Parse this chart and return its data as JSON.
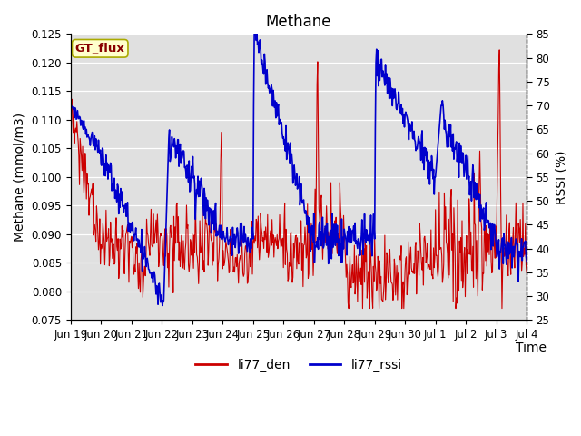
{
  "title": "Methane",
  "ylabel_left": "Methane (mmol/m3)",
  "ylabel_right": "RSSI (%)",
  "xlabel": "Time",
  "ylim_left": [
    0.075,
    0.125
  ],
  "ylim_right": [
    25,
    85
  ],
  "xtick_labels": [
    "Jun 19",
    "Jun 20",
    "Jun 21",
    "Jun 22",
    "Jun 23",
    "Jun 24",
    "Jun 25",
    "Jun 26",
    "Jun 27",
    "Jun 28",
    "Jun 29",
    "Jun 30",
    "Jul 1",
    "Jul 2",
    "Jul 3",
    "Jul 4"
  ],
  "line_red_label": "li77_den",
  "line_blue_label": "li77_rssi",
  "line_red_color": "#cc0000",
  "line_blue_color": "#0000cc",
  "bg_color": "#e0e0e0",
  "legend_box_color": "#ffffcc",
  "legend_box_edge": "#aaaa00",
  "annotation_text": "GT_flux",
  "annotation_color": "#880000",
  "title_fontsize": 12,
  "axis_fontsize": 10,
  "tick_fontsize": 8.5
}
